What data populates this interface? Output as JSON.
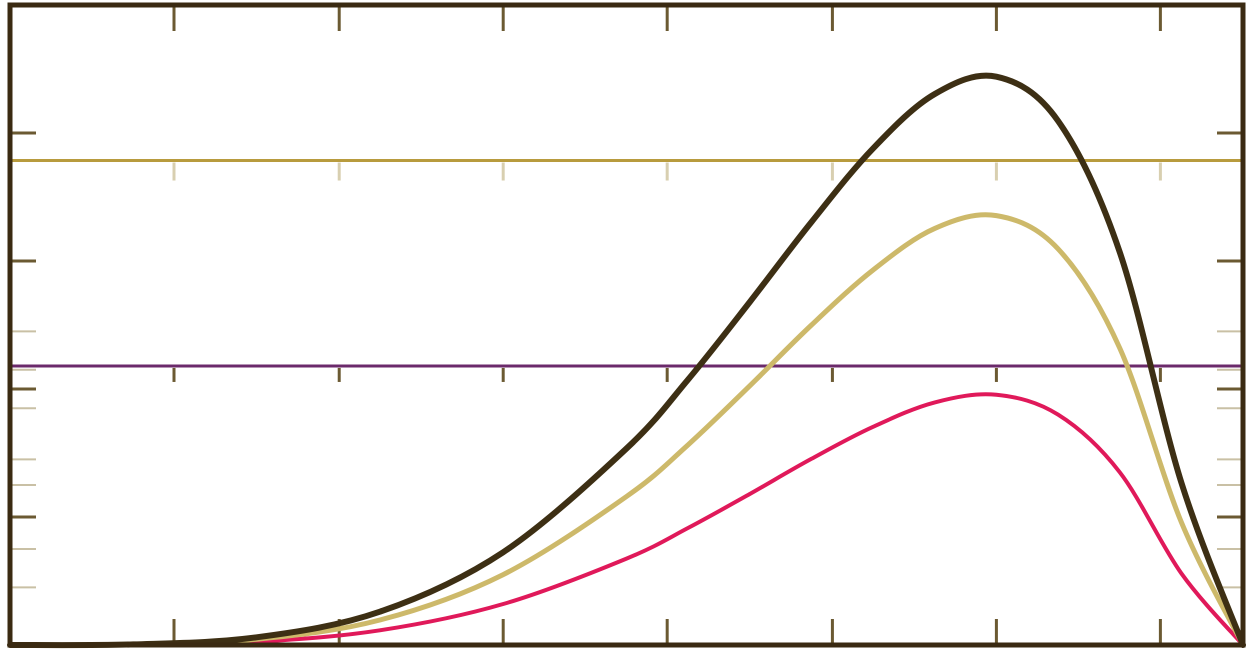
{
  "chart_data": {
    "type": "line",
    "title": "",
    "xlabel": "",
    "ylabel": "",
    "xlim": [
      0,
      1
    ],
    "ylim": [
      0,
      1
    ],
    "grid": false,
    "legend": "none",
    "x_ticks": [
      0.0,
      0.133,
      0.267,
      0.4,
      0.533,
      0.667,
      0.8,
      0.933,
      1.0
    ],
    "y_ticks_major": [
      0.0,
      0.2,
      0.4,
      0.6,
      0.8,
      1.0
    ],
    "y_ticks_minor_lower": [
      0.09,
      0.15,
      0.25,
      0.29,
      0.37,
      0.43,
      0.49
    ],
    "reference_lines": [
      {
        "id": "gold-hline",
        "y": 0.757,
        "color": "#b89b3e"
      },
      {
        "id": "purple-hline",
        "y": 0.436,
        "color": "#6b2a6b"
      }
    ],
    "series": [
      {
        "id": "dark-curve",
        "color": "#3d2f14",
        "peak": 0.888,
        "x": [
          0.0,
          0.1,
          0.2,
          0.3,
          0.4,
          0.5,
          0.55,
          0.6,
          0.65,
          0.7,
          0.75,
          0.8,
          0.85,
          0.9,
          0.95,
          1.0
        ],
        "values": [
          0.0,
          0.001,
          0.012,
          0.052,
          0.145,
          0.307,
          0.415,
          0.536,
          0.661,
          0.776,
          0.861,
          0.888,
          0.819,
          0.614,
          0.254,
          0.0
        ]
      },
      {
        "id": "tan-curve",
        "color": "#cdb96a",
        "peak": 0.671,
        "x": [
          0.0,
          0.1,
          0.2,
          0.3,
          0.4,
          0.5,
          0.55,
          0.6,
          0.65,
          0.7,
          0.75,
          0.8,
          0.85,
          0.9,
          0.95,
          1.0
        ],
        "values": [
          0.0,
          0.001,
          0.009,
          0.039,
          0.11,
          0.232,
          0.313,
          0.405,
          0.5,
          0.586,
          0.651,
          0.671,
          0.619,
          0.464,
          0.192,
          0.0
        ]
      },
      {
        "id": "pink-curve",
        "color": "#e0195a",
        "peak": 0.391,
        "x": [
          0.0,
          0.1,
          0.2,
          0.3,
          0.4,
          0.5,
          0.55,
          0.6,
          0.65,
          0.7,
          0.75,
          0.8,
          0.85,
          0.9,
          0.95,
          1.0
        ],
        "values": [
          0.0,
          0.0,
          0.005,
          0.023,
          0.064,
          0.135,
          0.183,
          0.236,
          0.291,
          0.341,
          0.379,
          0.391,
          0.36,
          0.27,
          0.112,
          0.0
        ]
      }
    ]
  }
}
